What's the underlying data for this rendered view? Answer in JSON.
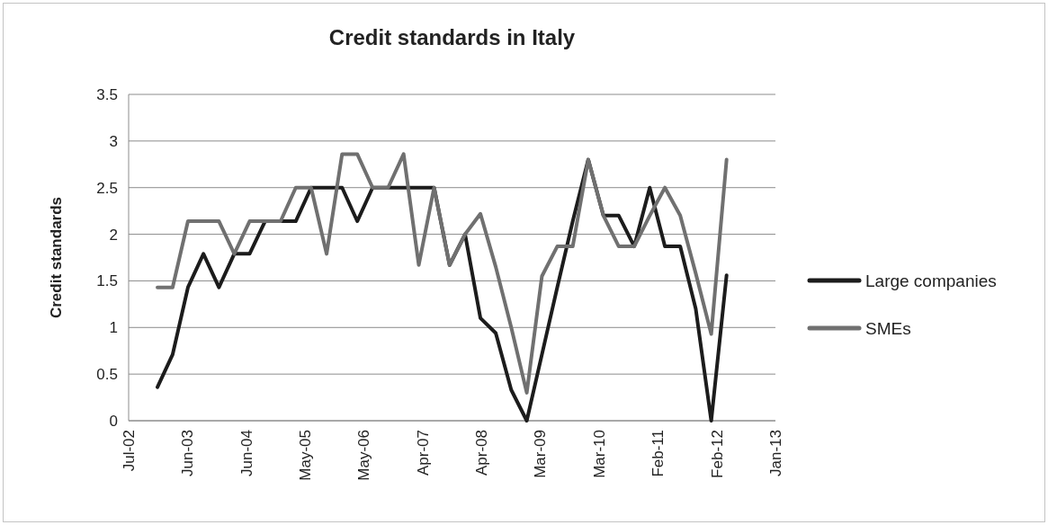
{
  "chart_data": {
    "type": "line",
    "title": "Credit standards in Italy",
    "ylabel": "Credit standards",
    "x": [
      "2003-01",
      "2003-04",
      "2003-07",
      "2003-10",
      "2004-01",
      "2004-04",
      "2004-07",
      "2004-10",
      "2005-01",
      "2005-04",
      "2005-07",
      "2005-10",
      "2006-01",
      "2006-04",
      "2006-07",
      "2006-10",
      "2007-01",
      "2007-04",
      "2007-07",
      "2007-10",
      "2008-01",
      "2008-04",
      "2008-07",
      "2008-10",
      "2009-01",
      "2009-04",
      "2009-07",
      "2009-10",
      "2010-01",
      "2010-04",
      "2010-07",
      "2010-10",
      "2011-01",
      "2011-04",
      "2011-07",
      "2011-10",
      "2012-01",
      "2012-04"
    ],
    "series": [
      {
        "name": "Large companies",
        "color": "#1c1c1c",
        "values": [
          0.36,
          0.71,
          1.43,
          1.79,
          1.43,
          1.79,
          1.79,
          2.14,
          2.14,
          2.14,
          2.5,
          2.5,
          2.5,
          2.14,
          2.5,
          2.5,
          2.5,
          2.5,
          2.5,
          1.67,
          2.0,
          1.1,
          0.94,
          0.33,
          0,
          0.71,
          1.43,
          2.14,
          2.8,
          2.2,
          2.2,
          1.87,
          2.5,
          1.87,
          1.87,
          1.2,
          0,
          1.56
        ]
      },
      {
        "name": "SMEs",
        "color": "#707070",
        "values": [
          1.43,
          1.43,
          2.14,
          2.14,
          2.14,
          1.79,
          2.14,
          2.14,
          2.14,
          2.5,
          2.5,
          1.79,
          2.86,
          2.86,
          2.5,
          2.5,
          2.86,
          1.67,
          2.5,
          1.67,
          2.0,
          2.22,
          1.65,
          1.0,
          0.3,
          1.55,
          1.87,
          1.87,
          2.8,
          2.2,
          1.87,
          1.87,
          2.2,
          2.5,
          2.2,
          1.58,
          0.93,
          2.8
        ]
      }
    ],
    "xlim": [
      "2002-07-14",
      "2013-01-16"
    ],
    "xticks": [
      {
        "value": "2002-07-14",
        "label": "Jul-02"
      },
      {
        "value": "2003-06-28",
        "label": "Jun-03"
      },
      {
        "value": "2004-06-11",
        "label": "Jun-04"
      },
      {
        "value": "2005-05-26",
        "label": "May-05"
      },
      {
        "value": "2006-05-10",
        "label": "May-06"
      },
      {
        "value": "2007-04-24",
        "label": "Apr-07"
      },
      {
        "value": "2008-04-07",
        "label": "Apr-08"
      },
      {
        "value": "2009-03-22",
        "label": "Mar-09"
      },
      {
        "value": "2010-03-06",
        "label": "Mar-10"
      },
      {
        "value": "2011-02-18",
        "label": "Feb-11"
      },
      {
        "value": "2012-02-02",
        "label": "Feb-12"
      },
      {
        "value": "2013-01-16",
        "label": "Jan-13"
      }
    ],
    "ylim": [
      0,
      3.5
    ],
    "yticks": [
      0,
      0.5,
      1,
      1.5,
      2,
      2.5,
      3,
      3.5
    ],
    "grid": "y",
    "legend": "right"
  }
}
